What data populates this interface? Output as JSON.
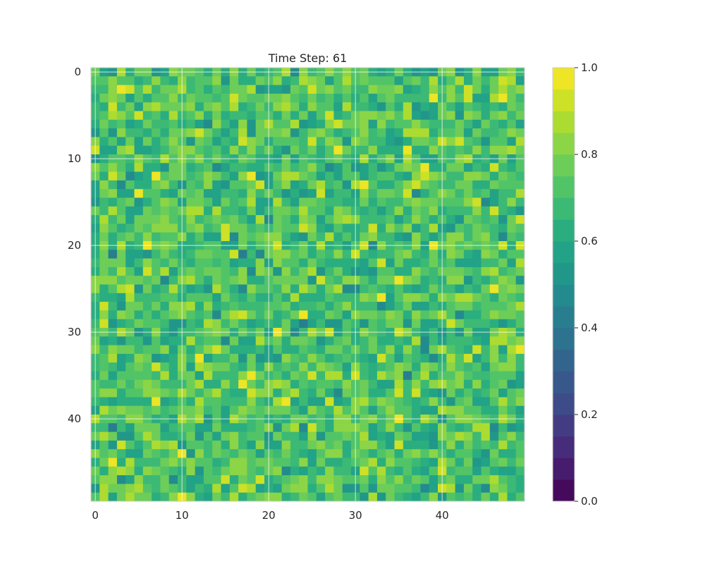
{
  "chart_data": {
    "type": "heatmap",
    "title": "Time Step: 61",
    "xlabel": "",
    "ylabel": "",
    "rows": 50,
    "cols": 50,
    "colormap": "viridis",
    "color_levels": 20,
    "vmin": 0.0,
    "vmax": 1.0,
    "value_distribution": {
      "min": 0.4,
      "max": 1.0,
      "typical": 0.7
    },
    "x_ticks": [
      "0",
      "10",
      "20",
      "30",
      "40"
    ],
    "x_tick_values": [
      0,
      10,
      20,
      30,
      40
    ],
    "y_ticks": [
      "0",
      "10",
      "20",
      "30",
      "40"
    ],
    "y_tick_values": [
      0,
      10,
      20,
      30,
      40
    ],
    "colorbar_ticks": [
      "0.0",
      "0.2",
      "0.4",
      "0.6",
      "0.8",
      "1.0"
    ],
    "colorbar_tick_values": [
      0.0,
      0.2,
      0.4,
      0.6,
      0.8,
      1.0
    ],
    "grid": true,
    "grid_color": "#ffffff",
    "colorbar_position": "right"
  }
}
